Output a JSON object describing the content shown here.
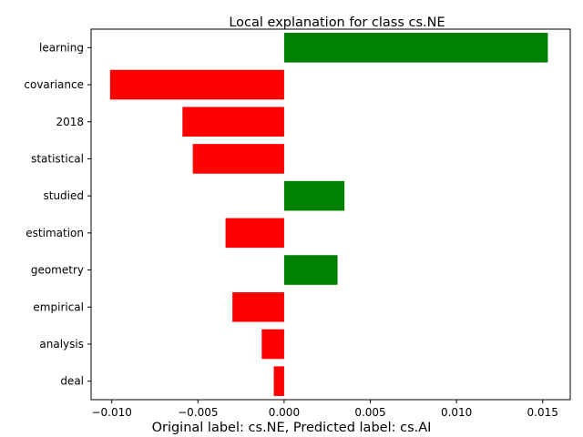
{
  "chart_data": {
    "type": "bar",
    "orientation": "horizontal",
    "title": "Local explanation for class cs.NE",
    "caption": "Original label: cs.NE, Predicted label: cs.AI",
    "categories": [
      "learning",
      "covariance",
      "2018",
      "statistical",
      "studied",
      "estimation",
      "geometry",
      "empirical",
      "analysis",
      "deal"
    ],
    "values": [
      0.0153,
      -0.0101,
      -0.0059,
      -0.0053,
      0.0035,
      -0.0034,
      0.0031,
      -0.003,
      -0.0013,
      -0.0006
    ],
    "xlim": [
      -0.0112,
      0.0166
    ],
    "xticks": [
      -0.01,
      -0.005,
      0,
      0.005,
      0.01,
      0.015
    ],
    "xtick_labels": [
      "−0.010",
      "−0.005",
      "0.000",
      "0.005",
      "0.010",
      "0.015"
    ],
    "colors": {
      "positive": "#008000",
      "negative": "#ff0000"
    },
    "grid": false,
    "legend": "none"
  }
}
